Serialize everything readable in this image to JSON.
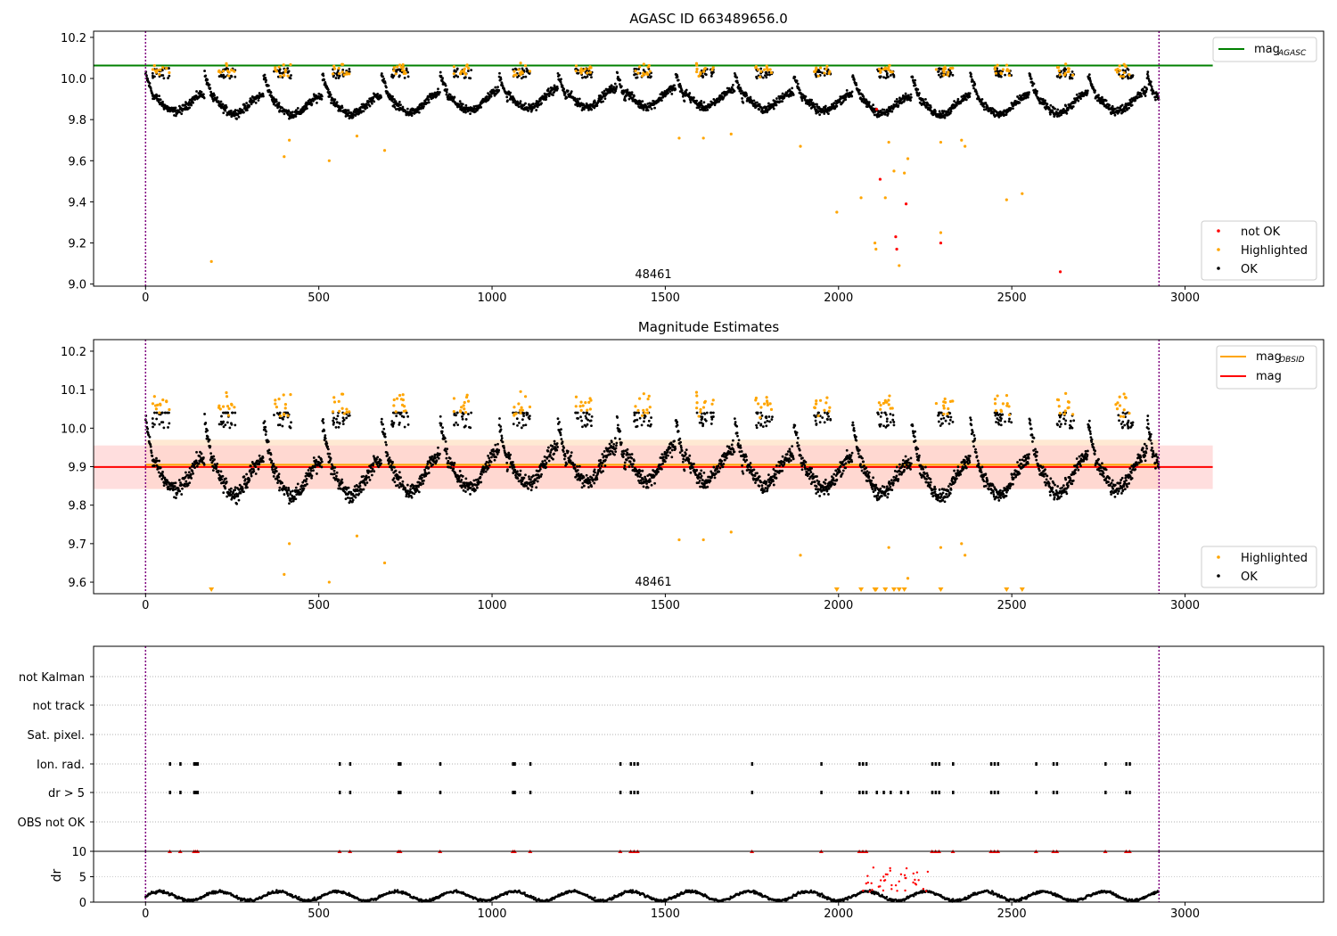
{
  "chart_data": [
    {
      "type": "scatter",
      "title": "AGASC ID 663489656.0",
      "annotation": "48461",
      "xlim": [
        -150,
        3400
      ],
      "ylim": [
        8.99,
        10.23
      ],
      "x_ticks": [
        0,
        500,
        1000,
        1500,
        2000,
        2500,
        3000
      ],
      "y_ticks": [
        9.0,
        9.2,
        9.4,
        9.6,
        9.8,
        10.0,
        10.2
      ],
      "y_tick_labels": [
        "9.0",
        "9.2",
        "9.4",
        "9.6",
        "9.8",
        "10.0",
        "10.2"
      ],
      "vlines": [
        0,
        2925
      ],
      "reference_lines": [
        {
          "name": "mag_AGASC",
          "value": 10.063,
          "color": "#008000",
          "x_range": [
            -150,
            3080
          ]
        }
      ],
      "legend_line": {
        "label": "mag",
        "sub": "AGASC",
        "color": "#008000"
      },
      "legend_points": [
        {
          "label": "not OK",
          "color": "#ff0000"
        },
        {
          "label": "Highlighted",
          "color": "#ffa500"
        },
        {
          "label": "OK",
          "color": "#000000"
        }
      ],
      "series": [
        {
          "name": "OK",
          "color": "#000000",
          "n_points": 2900,
          "x_range": [
            0,
            2925
          ],
          "typical_y_range": [
            9.8,
            10.02
          ]
        },
        {
          "name": "Highlighted",
          "color": "#ffa500",
          "points": [
            [
              190,
              9.11
            ],
            [
              400,
              9.62
            ],
            [
              415,
              9.7
            ],
            [
              530,
              9.6
            ],
            [
              610,
              9.72
            ],
            [
              690,
              9.65
            ],
            [
              1540,
              9.71
            ],
            [
              1610,
              9.71
            ],
            [
              1690,
              9.73
            ],
            [
              1890,
              9.67
            ],
            [
              1995,
              9.35
            ],
            [
              2065,
              9.42
            ],
            [
              2105,
              9.2
            ],
            [
              2108,
              9.17
            ],
            [
              2135,
              9.42
            ],
            [
              2145,
              9.69
            ],
            [
              2160,
              9.55
            ],
            [
              2175,
              9.09
            ],
            [
              2190,
              9.54
            ],
            [
              2200,
              9.61
            ],
            [
              2295,
              9.25
            ],
            [
              2295,
              9.69
            ],
            [
              2355,
              9.7
            ],
            [
              2365,
              9.67
            ],
            [
              2485,
              9.41
            ],
            [
              2530,
              9.44
            ]
          ]
        },
        {
          "name": "not OK",
          "color": "#ff0000",
          "points": [
            [
              2110,
              9.85
            ],
            [
              2120,
              9.51
            ],
            [
              2165,
              9.23
            ],
            [
              2168,
              9.17
            ],
            [
              2195,
              9.39
            ],
            [
              2295,
              9.2
            ],
            [
              2640,
              9.06
            ]
          ]
        }
      ]
    },
    {
      "type": "scatter",
      "title": "Magnitude Estimates",
      "annotation": "48461",
      "xlim": [
        -150,
        3400
      ],
      "ylim": [
        9.57,
        10.23
      ],
      "x_ticks": [
        0,
        500,
        1000,
        1500,
        2000,
        2500,
        3000
      ],
      "y_ticks": [
        9.6,
        9.7,
        9.8,
        9.9,
        10.0,
        10.1,
        10.2
      ],
      "y_tick_labels": [
        "9.6",
        "9.7",
        "9.8",
        "9.9",
        "10.0",
        "10.1",
        "10.2"
      ],
      "vlines": [
        0,
        2925
      ],
      "reference_lines": [
        {
          "name": "mag_OBSID",
          "value": 9.905,
          "color": "#ffa500",
          "x_range": [
            0,
            2925
          ],
          "band": [
            9.842,
            9.97
          ],
          "band_color": "#ffe0c0"
        },
        {
          "name": "mag",
          "value": 9.899,
          "color": "#ff0000",
          "x_range": [
            -150,
            3080
          ],
          "band": [
            9.842,
            9.955
          ],
          "band_color": "#ffd0d0"
        }
      ],
      "legend_lines": [
        {
          "label": "mag",
          "sub": "OBSID",
          "color": "#ffa500"
        },
        {
          "label": "mag",
          "sub": "",
          "color": "#ff0000"
        }
      ],
      "legend_points": [
        {
          "label": "Highlighted",
          "color": "#ffa500"
        },
        {
          "label": "OK",
          "color": "#000000"
        }
      ],
      "off_scale_markers": {
        "marker": "triangle-down",
        "color": "#ffa500",
        "x": [
          190,
          1995,
          2065,
          2105,
          2108,
          2135,
          2160,
          2175,
          2190,
          2295,
          2485,
          2530
        ]
      }
    },
    {
      "type": "scatter",
      "categories": [
        "not Kalman",
        "not track",
        "Sat. pixel.",
        "Ion. rad.",
        "dr > 5",
        "OBS not OK"
      ],
      "xlim": [
        -150,
        3400
      ],
      "x_ticks": [
        0,
        500,
        1000,
        1500,
        2000,
        2500,
        3000
      ],
      "vlines": [
        0,
        2925
      ],
      "flag_events": {
        "Ion. rad.": [
          70,
          100,
          140,
          145,
          150,
          560,
          590,
          730,
          735,
          850,
          1060,
          1065,
          1110,
          1370,
          1400,
          1410,
          1420,
          1750,
          1950,
          2060,
          2070,
          2080,
          2270,
          2280,
          2290,
          2330,
          2440,
          2450,
          2460,
          2570,
          2620,
          2630,
          2770,
          2830,
          2840
        ],
        "dr > 5": [
          70,
          100,
          140,
          145,
          150,
          560,
          590,
          730,
          735,
          850,
          1060,
          1065,
          1110,
          1370,
          1400,
          1410,
          1420,
          1750,
          1950,
          2060,
          2070,
          2080,
          2110,
          2130,
          2150,
          2180,
          2200,
          2270,
          2280,
          2290,
          2330,
          2440,
          2450,
          2460,
          2570,
          2620,
          2630,
          2770,
          2830,
          2840
        ]
      }
    },
    {
      "type": "scatter",
      "ylabel": "dr",
      "xlim": [
        -150,
        3400
      ],
      "ylim": [
        0,
        10
      ],
      "x_ticks": [
        0,
        500,
        1000,
        1500,
        2000,
        2500,
        3000
      ],
      "y_ticks": [
        0,
        5,
        10
      ],
      "y_tick_labels": [
        "0",
        "5",
        "10"
      ],
      "vlines": [
        0,
        2925
      ],
      "series": [
        {
          "name": "OK",
          "color": "#000000",
          "typical_y_range": [
            0.3,
            3
          ]
        },
        {
          "name": "not OK",
          "color": "#ff0000",
          "clipped_at": 10,
          "x": [
            70,
            100,
            140,
            145,
            150,
            560,
            590,
            730,
            735,
            850,
            1060,
            1065,
            1110,
            1370,
            1400,
            1410,
            1420,
            1750,
            1950,
            2060,
            2070,
            2080,
            2270,
            2280,
            2290,
            2330,
            2440,
            2450,
            2460,
            2570,
            2620,
            2630,
            2770,
            2830,
            2840
          ]
        }
      ]
    }
  ]
}
